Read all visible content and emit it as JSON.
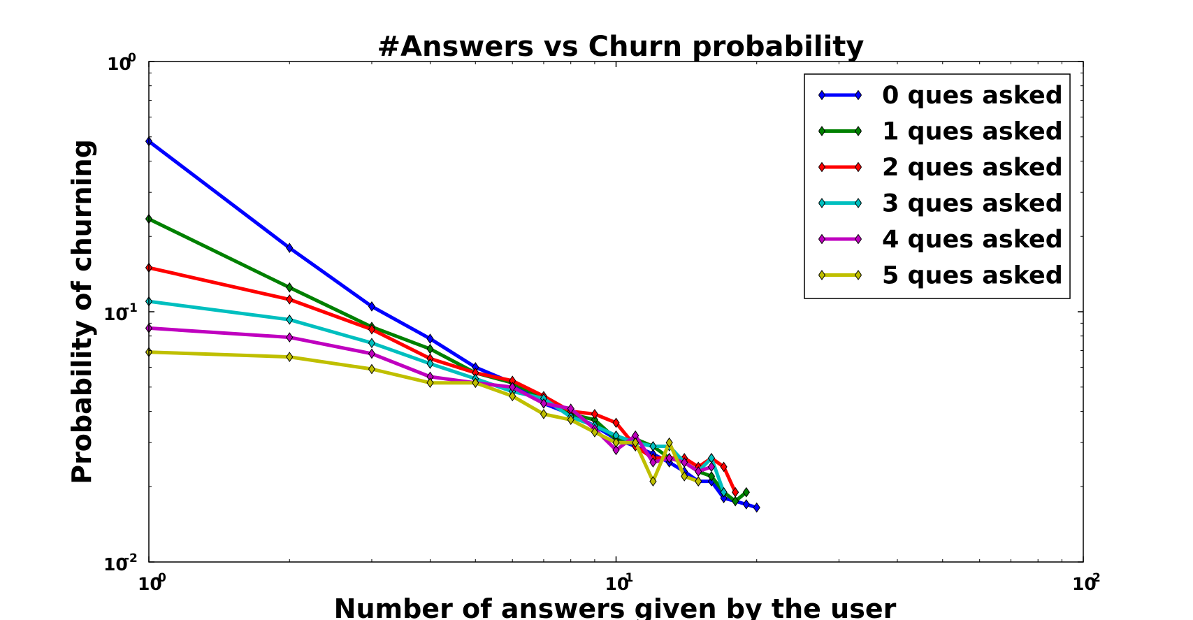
{
  "chart_data": {
    "type": "line",
    "title": "#Answers vs Churn probability",
    "xlabel": "Number of answers given by the user",
    "ylabel": "Probability of churning",
    "xscale": "log",
    "yscale": "log",
    "xlim": [
      1,
      100
    ],
    "ylim": [
      0.01,
      1
    ],
    "x_ticks": [
      {
        "base": "10",
        "exp": "0",
        "value": 1
      },
      {
        "base": "10",
        "exp": "1",
        "value": 10
      },
      {
        "base": "10",
        "exp": "2",
        "value": 100
      }
    ],
    "y_ticks": [
      {
        "base": "10",
        "exp": "0",
        "value": 1
      },
      {
        "base": "10",
        "exp": "-1",
        "value": 0.1
      },
      {
        "base": "10",
        "exp": "-2",
        "value": 0.01
      }
    ],
    "legend_position": "top-right",
    "grid": false,
    "marker": "diamond",
    "series": [
      {
        "name": "0 ques asked",
        "color": "#0000ff",
        "x": [
          1,
          2,
          3,
          4,
          5,
          6,
          7,
          8,
          9,
          10,
          11,
          12,
          13,
          14,
          15,
          16,
          17,
          18,
          19,
          20
        ],
        "y": [
          0.48,
          0.18,
          0.105,
          0.078,
          0.06,
          0.052,
          0.043,
          0.039,
          0.035,
          0.031,
          0.029,
          0.027,
          0.025,
          0.023,
          0.021,
          0.021,
          0.018,
          0.0175,
          0.017,
          0.0165
        ]
      },
      {
        "name": "1 ques asked",
        "color": "#008000",
        "x": [
          1,
          2,
          3,
          4,
          5,
          6,
          7,
          8,
          9,
          10,
          11,
          12,
          13,
          14,
          15,
          16,
          17,
          18,
          19
        ],
        "y": [
          0.235,
          0.125,
          0.087,
          0.071,
          0.057,
          0.052,
          0.045,
          0.039,
          0.037,
          0.031,
          0.031,
          0.029,
          0.026,
          0.025,
          0.023,
          0.022,
          0.019,
          0.0175,
          0.019
        ]
      },
      {
        "name": "2 ques asked",
        "color": "#ff0000",
        "x": [
          1,
          2,
          3,
          4,
          5,
          6,
          7,
          8,
          9,
          10,
          11,
          12,
          13,
          14,
          15,
          16,
          17,
          18
        ],
        "y": [
          0.15,
          0.112,
          0.085,
          0.065,
          0.057,
          0.053,
          0.046,
          0.04,
          0.039,
          0.036,
          0.029,
          0.026,
          0.026,
          0.026,
          0.024,
          0.026,
          0.024,
          0.019
        ]
      },
      {
        "name": "3 ques asked",
        "color": "#00bfbf",
        "x": [
          1,
          2,
          3,
          4,
          5,
          6,
          7,
          8,
          9,
          10,
          11,
          12,
          13,
          14,
          15,
          16,
          17
        ],
        "y": [
          0.11,
          0.093,
          0.075,
          0.062,
          0.054,
          0.048,
          0.045,
          0.038,
          0.035,
          0.032,
          0.03,
          0.029,
          0.029,
          0.025,
          0.023,
          0.026,
          0.019
        ]
      },
      {
        "name": "4 ques asked",
        "color": "#bf00bf",
        "x": [
          1,
          2,
          3,
          4,
          5,
          6,
          7,
          8,
          9,
          10,
          11,
          12,
          13,
          14,
          15,
          16
        ],
        "y": [
          0.086,
          0.079,
          0.068,
          0.055,
          0.052,
          0.05,
          0.043,
          0.041,
          0.034,
          0.028,
          0.032,
          0.025,
          0.026,
          0.025,
          0.023,
          0.024
        ]
      },
      {
        "name": "5 ques asked",
        "color": "#bfbf00",
        "x": [
          1,
          2,
          3,
          4,
          5,
          6,
          7,
          8,
          9,
          10,
          11,
          12,
          13,
          14,
          15
        ],
        "y": [
          0.069,
          0.066,
          0.059,
          0.052,
          0.052,
          0.046,
          0.039,
          0.037,
          0.033,
          0.03,
          0.03,
          0.021,
          0.03,
          0.022,
          0.021
        ]
      }
    ]
  }
}
